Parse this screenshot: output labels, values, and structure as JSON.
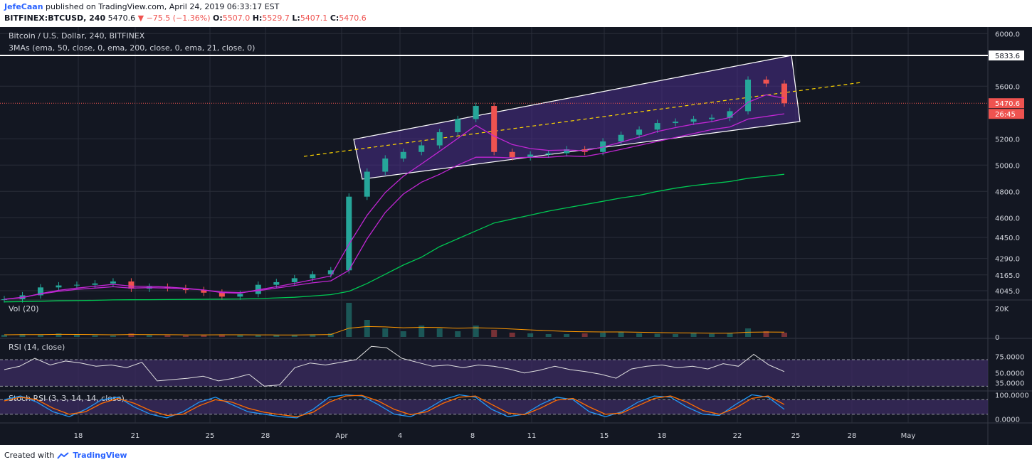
{
  "header": {
    "author": "JefeCaan",
    "published_text": " published on TradingView.com, April 24, 2019 06:33:17 EST",
    "symbol": "BITFINEX:BTCUSD, 240",
    "last": "5470.6",
    "change": "−75.5 (−1.36%)",
    "o_label": "O:",
    "o": "5507.0",
    "h_label": "H:",
    "h": "5529.7",
    "l_label": "L:",
    "l": "5407.1",
    "c_label": "C:",
    "c": "5470.6"
  },
  "footer": {
    "created": "Created with",
    "brand": "TradingView"
  },
  "colors": {
    "background": "#131722",
    "up": "#26a69a",
    "down": "#ef5350",
    "ema50": "#c026d3",
    "ema200": "#00c853",
    "ema21": "#d50000",
    "channel_fill": "#4a2e8a",
    "trend": "#ffd600",
    "rsi_band": "#3a2a5e"
  },
  "chart_data": [
    {
      "type": "line",
      "title": "Bitcoin / U.S. Dollar, 240, BITFINEX",
      "subtitle": "3MAs (ema, 50, close, 0, ema, 200, close, 0, ema, 21, close, 0)",
      "x_ticks": [
        "18",
        "21",
        "25",
        "28",
        "Apr",
        "4",
        "8",
        "11",
        "15",
        "18",
        "22",
        "25",
        "28",
        "May"
      ],
      "y_ticks": [
        "6000.0",
        "5600.0",
        "5200.0",
        "5000.0",
        "4800.0",
        "4600.0",
        "4450.0",
        "4290.0",
        "4165.0",
        "4045.0"
      ],
      "ylim": [
        3980,
        6050
      ],
      "price_labels": {
        "resistance": "5833.6",
        "last": "5470.6",
        "countdown": "26:45"
      },
      "series": [
        {
          "values": [
            3980,
            4010,
            4070,
            4085,
            4090,
            4100,
            4115,
            4060,
            4075,
            4065,
            4050,
            4030,
            4000,
            4020,
            4090,
            4110,
            4140,
            4170,
            4200,
            4760,
            4950,
            5050,
            5100,
            5150,
            5250,
            5350,
            5450,
            5100,
            5060,
            5080,
            5090,
            5120,
            5100,
            5180,
            5230,
            5270,
            5320,
            5330,
            5350,
            5360,
            5410,
            5650,
            5620,
            5470
          ]
        },
        {
          "values": [
            3980,
            3995,
            4020,
            4040,
            4055,
            4065,
            4075,
            4065,
            4068,
            4065,
            4060,
            4050,
            4035,
            4030,
            4045,
            4065,
            4085,
            4105,
            4120,
            4200,
            4440,
            4640,
            4780,
            4870,
            4930,
            5000,
            5060,
            5060,
            5055,
            5060,
            5060,
            5070,
            5065,
            5090,
            5120,
            5150,
            5180,
            5210,
            5240,
            5270,
            5290,
            5350,
            5370,
            5390
          ]
        },
        {
          "values": [
            3960,
            3962,
            3965,
            3968,
            3970,
            3972,
            3975,
            3976,
            3977,
            3978,
            3979,
            3980,
            3981,
            3982,
            3985,
            3990,
            3995,
            4005,
            4015,
            4040,
            4100,
            4170,
            4240,
            4300,
            4380,
            4440,
            4500,
            4560,
            4590,
            4620,
            4650,
            4675,
            4700,
            4725,
            4750,
            4770,
            4800,
            4825,
            4845,
            4860,
            4875,
            4900,
            4915,
            4930
          ]
        }
      ]
    },
    {
      "type": "bar",
      "title": "Vol (20)",
      "y_ticks": [
        "20K",
        "0"
      ],
      "ylim": [
        0,
        25000
      ],
      "values": [
        1500,
        2000,
        1800,
        2500,
        1500,
        1200,
        1000,
        2500,
        1300,
        1200,
        1000,
        1500,
        1800,
        1500,
        1200,
        1300,
        1400,
        1800,
        2500,
        24000,
        12000,
        6000,
        4000,
        8000,
        6000,
        4000,
        8000,
        5000,
        3000,
        2500,
        2000,
        2000,
        2500,
        3000,
        3500,
        2500,
        2200,
        2000,
        2500,
        2200,
        2500,
        6000,
        4000,
        3000
      ]
    },
    {
      "type": "line",
      "title": "RSI (14, close)",
      "y_ticks": [
        "75.0000",
        "50.0000",
        "35.0000"
      ],
      "ylim": [
        25,
        100
      ],
      "values": [
        55,
        60,
        72,
        62,
        68,
        65,
        60,
        62,
        58,
        66,
        38,
        40,
        42,
        45,
        38,
        42,
        48,
        30,
        32,
        58,
        65,
        62,
        66,
        70,
        90,
        88,
        72,
        66,
        60,
        62,
        58,
        62,
        60,
        56,
        50,
        54,
        60,
        55,
        52,
        48,
        42,
        56,
        60,
        62,
        58,
        60,
        56,
        64,
        60,
        78,
        62,
        52
      ]
    },
    {
      "type": "line",
      "title": "Stoch RSI (3, 3, 14, 14, close)",
      "y_ticks": [
        "100.0000",
        "0.0000"
      ],
      "ylim": [
        -10,
        110
      ],
      "series": [
        {
          "values": [
            80,
            95,
            70,
            30,
            10,
            40,
            80,
            90,
            50,
            20,
            5,
            30,
            70,
            90,
            60,
            30,
            20,
            10,
            5,
            40,
            90,
            100,
            95,
            60,
            20,
            10,
            40,
            80,
            100,
            90,
            40,
            10,
            20,
            60,
            90,
            80,
            30,
            10,
            30,
            70,
            95,
            90,
            50,
            20,
            15,
            60,
            100,
            90,
            40
          ]
        },
        {
          "values": [
            75,
            90,
            80,
            45,
            20,
            30,
            65,
            85,
            65,
            35,
            15,
            20,
            55,
            80,
            70,
            45,
            28,
            18,
            10,
            28,
            70,
            95,
            98,
            75,
            40,
            18,
            30,
            65,
            90,
            95,
            60,
            25,
            18,
            45,
            78,
            85,
            50,
            20,
            25,
            55,
            85,
            95,
            70,
            35,
            20,
            45,
            85,
            95,
            60
          ]
        }
      ]
    }
  ]
}
